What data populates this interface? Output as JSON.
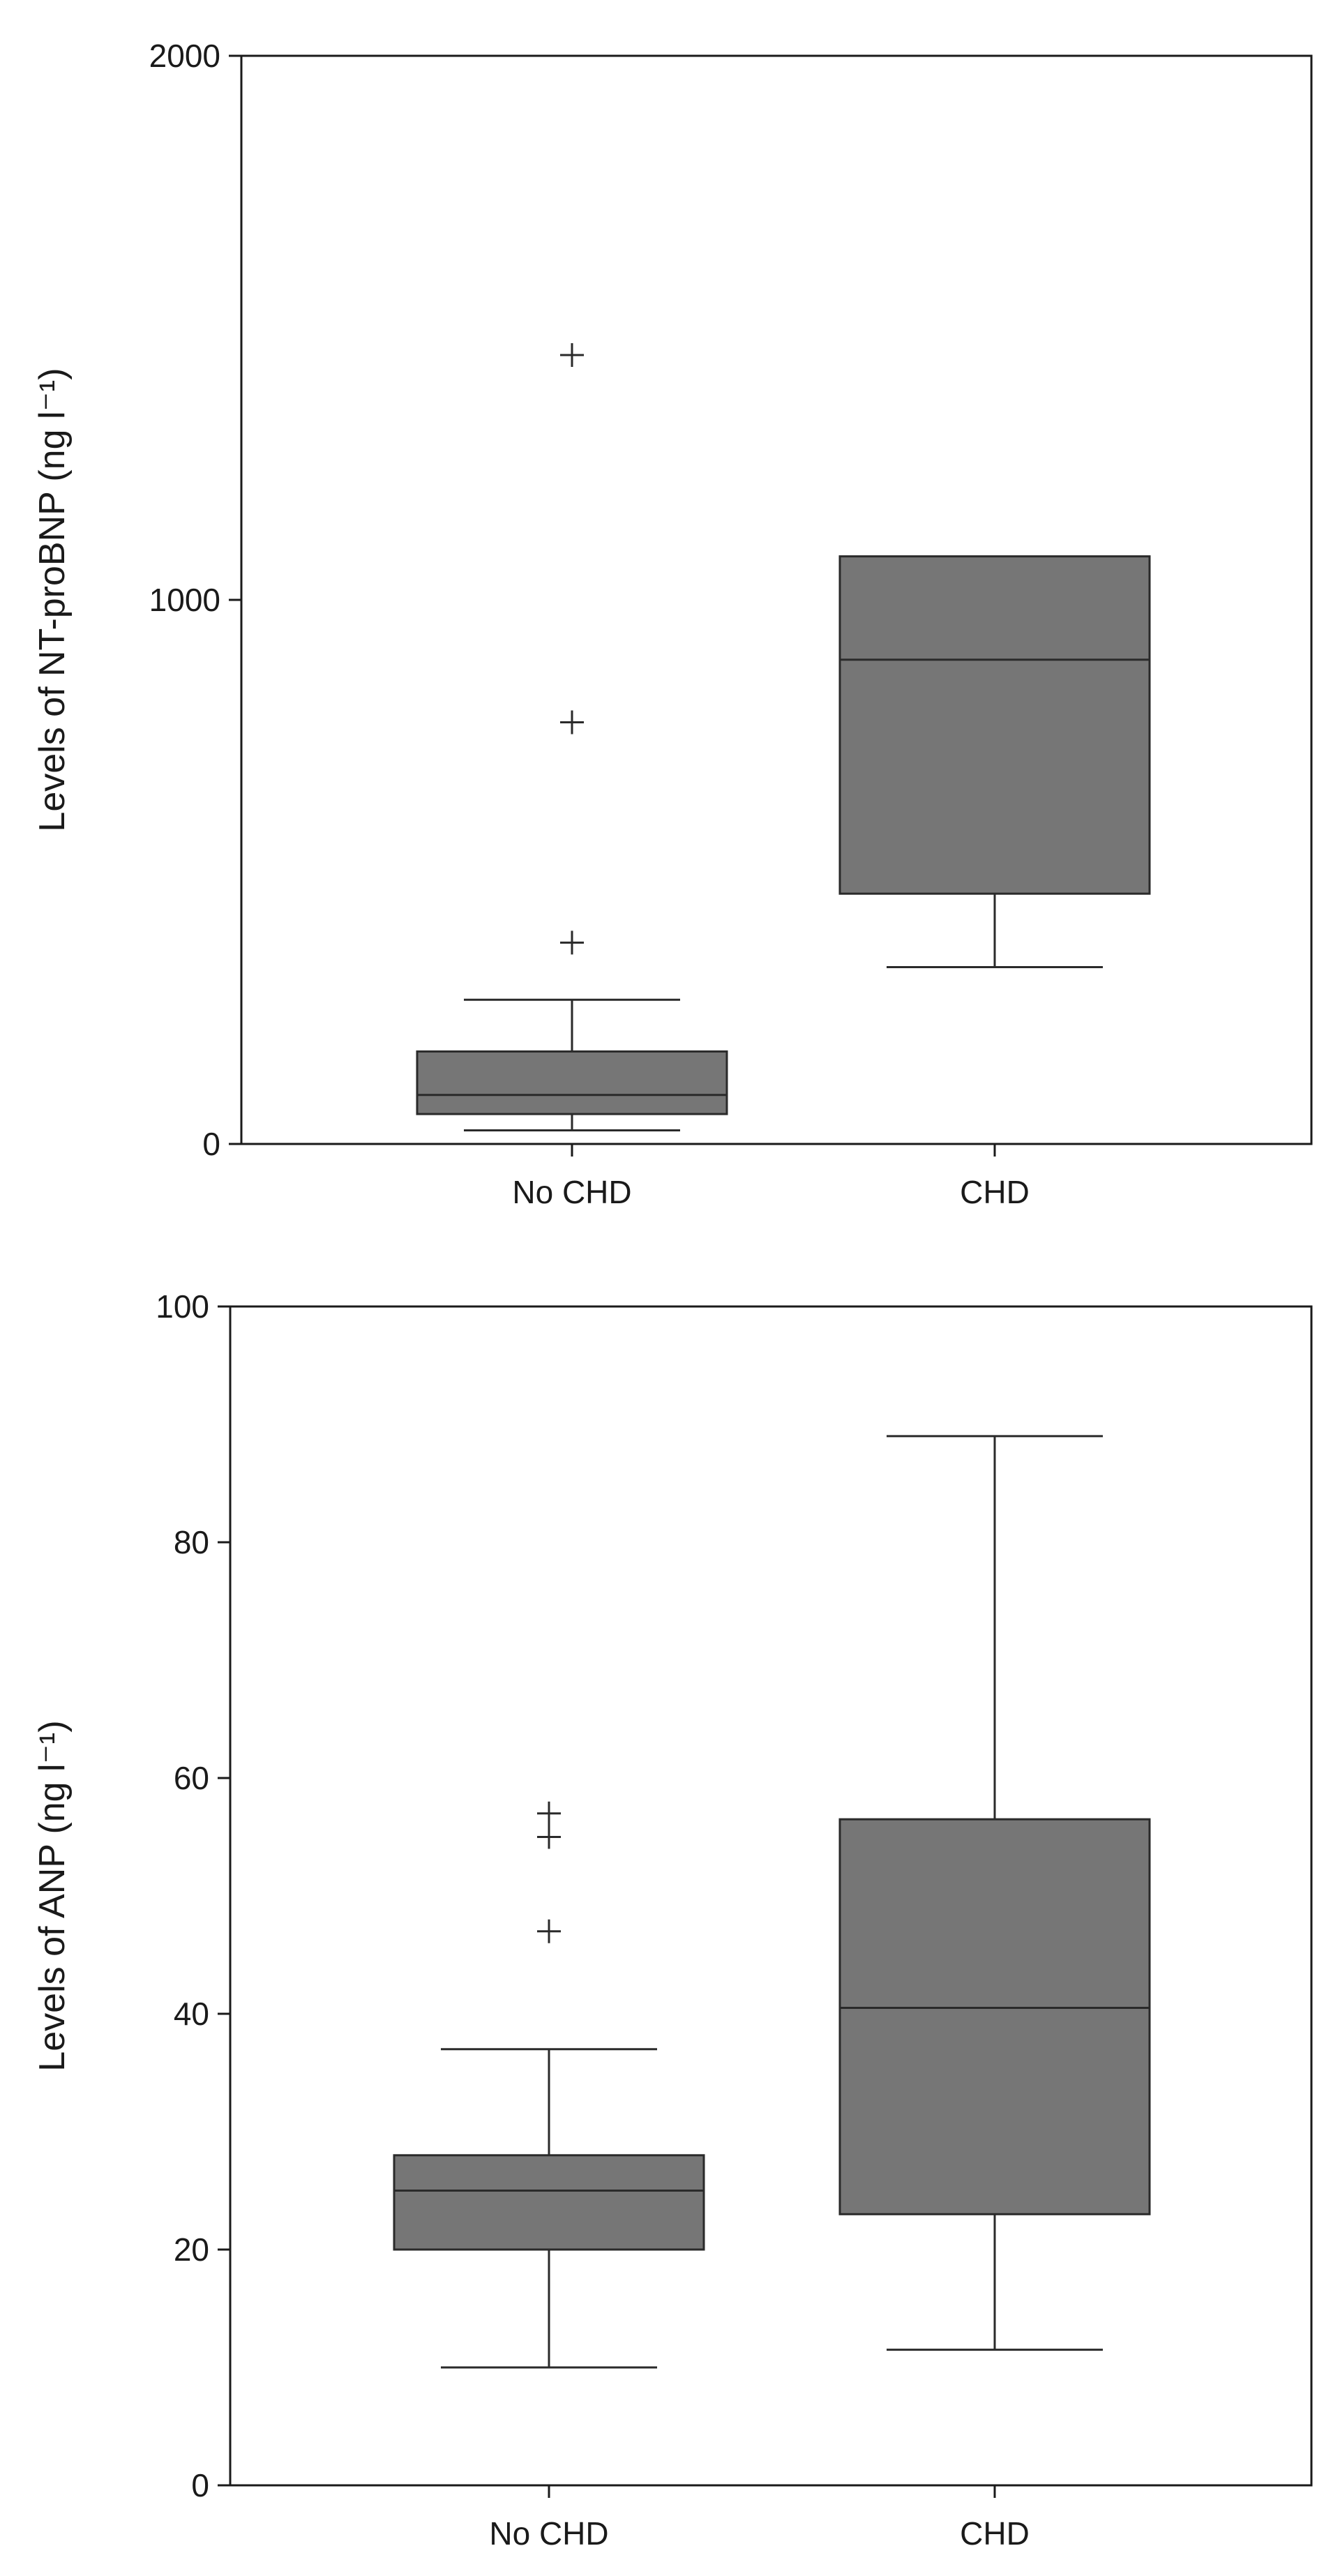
{
  "chart_data": [
    {
      "type": "box",
      "title": "",
      "xlabel": "",
      "ylabel": "Levels of NT-proBNP (ng l⁻¹)",
      "ylim": [
        0,
        2000
      ],
      "yticks": [
        0,
        1000,
        2000
      ],
      "categories": [
        "No CHD",
        "CHD"
      ],
      "boxes": [
        {
          "name": "No CHD",
          "whisker_low": 25,
          "q1": 55,
          "median": 90,
          "q3": 170,
          "whisker_high": 265,
          "outliers": [
            370,
            775,
            1450
          ]
        },
        {
          "name": "CHD",
          "whisker_low": 325,
          "q1": 460,
          "median": 890,
          "q3": 1080,
          "whisker_high": 1080,
          "outliers": []
        }
      ]
    },
    {
      "type": "box",
      "title": "",
      "xlabel": "",
      "ylabel": "Levels of ANP (ng l⁻¹)",
      "ylim": [
        0,
        100
      ],
      "yticks": [
        0,
        20,
        40,
        60,
        80,
        100
      ],
      "categories": [
        "No CHD",
        "CHD"
      ],
      "boxes": [
        {
          "name": "No CHD",
          "whisker_low": 10,
          "q1": 20,
          "median": 25,
          "q3": 28,
          "whisker_high": 37,
          "outliers": [
            47,
            55,
            57
          ]
        },
        {
          "name": "CHD",
          "whisker_low": 11.5,
          "q1": 23,
          "median": 40.5,
          "q3": 56.5,
          "whisker_high": 89,
          "outliers": []
        }
      ]
    }
  ]
}
